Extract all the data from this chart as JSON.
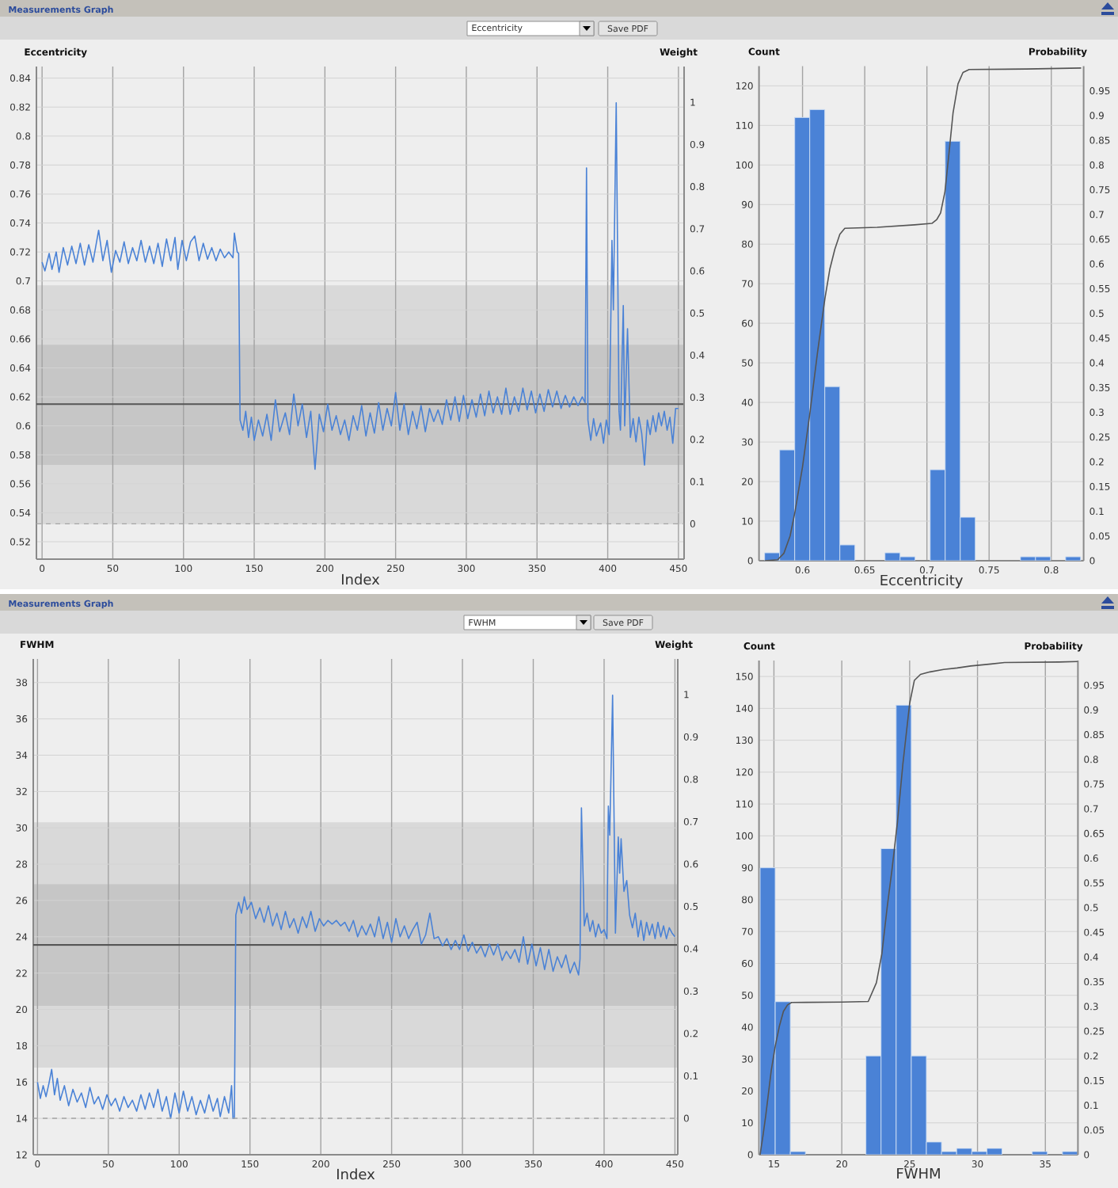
{
  "chart_data": [
    {
      "type": "line",
      "title": "Measurements Graph",
      "annotations": [
        "Eccentricity",
        "Save PDF"
      ],
      "xlabel": "Index",
      "ylabel": "Eccentricity",
      "y2label": "Weight",
      "x": [
        0,
        2,
        5,
        7,
        10,
        12,
        15,
        18,
        21,
        24,
        27,
        30,
        33,
        36,
        40,
        43,
        46,
        49,
        52,
        55,
        58,
        61,
        64,
        67,
        70,
        73,
        76,
        79,
        82,
        85,
        88,
        91,
        94,
        96,
        99,
        102,
        105,
        108,
        111,
        114,
        117,
        120,
        123,
        126,
        129,
        132,
        135,
        136,
        138,
        139,
        140,
        142,
        144,
        146,
        148,
        150,
        153,
        156,
        159,
        162,
        165,
        168,
        172,
        175,
        178,
        181,
        184,
        187,
        190,
        193,
        196,
        199,
        202,
        205,
        208,
        211,
        214,
        217,
        220,
        223,
        226,
        229,
        232,
        235,
        238,
        241,
        244,
        247,
        250,
        253,
        256,
        259,
        262,
        265,
        268,
        271,
        274,
        277,
        280,
        283,
        286,
        289,
        292,
        295,
        298,
        301,
        304,
        307,
        310,
        313,
        316,
        319,
        322,
        325,
        328,
        331,
        334,
        337,
        340,
        343,
        346,
        349,
        352,
        355,
        358,
        361,
        364,
        367,
        370,
        373,
        376,
        379,
        382,
        384,
        385,
        386,
        388,
        390,
        392,
        395,
        397,
        399,
        401,
        403,
        404,
        406,
        408,
        409,
        411,
        412,
        414,
        416,
        418,
        420,
        422,
        424,
        426,
        428,
        430,
        432,
        434,
        436,
        438,
        440,
        442,
        444,
        446,
        448,
        450
      ],
      "values": [
        0.713,
        0.707,
        0.719,
        0.708,
        0.72,
        0.706,
        0.723,
        0.711,
        0.724,
        0.712,
        0.726,
        0.711,
        0.725,
        0.713,
        0.735,
        0.714,
        0.728,
        0.706,
        0.721,
        0.713,
        0.727,
        0.712,
        0.723,
        0.714,
        0.728,
        0.713,
        0.724,
        0.712,
        0.726,
        0.71,
        0.729,
        0.714,
        0.73,
        0.708,
        0.728,
        0.714,
        0.727,
        0.731,
        0.714,
        0.726,
        0.715,
        0.723,
        0.714,
        0.722,
        0.716,
        0.72,
        0.716,
        0.733,
        0.72,
        0.719,
        0.604,
        0.597,
        0.61,
        0.592,
        0.606,
        0.59,
        0.604,
        0.593,
        0.608,
        0.59,
        0.618,
        0.596,
        0.609,
        0.594,
        0.622,
        0.6,
        0.615,
        0.592,
        0.61,
        0.57,
        0.608,
        0.596,
        0.615,
        0.597,
        0.607,
        0.594,
        0.604,
        0.59,
        0.607,
        0.597,
        0.614,
        0.593,
        0.609,
        0.595,
        0.616,
        0.597,
        0.612,
        0.6,
        0.623,
        0.597,
        0.615,
        0.594,
        0.61,
        0.598,
        0.614,
        0.596,
        0.612,
        0.603,
        0.611,
        0.601,
        0.618,
        0.604,
        0.62,
        0.603,
        0.621,
        0.605,
        0.618,
        0.606,
        0.622,
        0.607,
        0.624,
        0.609,
        0.62,
        0.608,
        0.626,
        0.608,
        0.62,
        0.61,
        0.626,
        0.611,
        0.624,
        0.609,
        0.622,
        0.61,
        0.625,
        0.613,
        0.624,
        0.612,
        0.621,
        0.613,
        0.62,
        0.614,
        0.62,
        0.616,
        0.778,
        0.604,
        0.59,
        0.605,
        0.593,
        0.602,
        0.588,
        0.604,
        0.594,
        0.728,
        0.68,
        0.823,
        0.61,
        0.597,
        0.683,
        0.6,
        0.667,
        0.592,
        0.605,
        0.589,
        0.606,
        0.595,
        0.573,
        0.604,
        0.594,
        0.607,
        0.596,
        0.609,
        0.6,
        0.61,
        0.597,
        0.606,
        0.588,
        0.612,
        0.612
      ],
      "color": "#4a82d6",
      "xlim": [
        -4,
        454
      ],
      "xticks": [
        0,
        50,
        100,
        150,
        200,
        250,
        300,
        350,
        400,
        450
      ],
      "ylim": [
        0.508,
        0.848
      ],
      "yticks": [
        0.52,
        0.54,
        0.56,
        0.58,
        0.6,
        0.62,
        0.64,
        0.66,
        0.68,
        0.7,
        0.72,
        0.74,
        0.76,
        0.78,
        0.8,
        0.82,
        0.84
      ],
      "y2lim": [
        -0.084,
        1.085
      ],
      "y2ticks": [
        0,
        0.1,
        0.2,
        0.3,
        0.4,
        0.5,
        0.6,
        0.7,
        0.8,
        0.9,
        1
      ],
      "grid": true,
      "bands": [
        {
          "axis": "y",
          "from": 0.532,
          "to": 0.697,
          "color": "#d9d9d9"
        },
        {
          "axis": "y",
          "from": 0.573,
          "to": 0.656,
          "color": "#c6c6c6"
        }
      ],
      "ref_lines": [
        {
          "axis": "y",
          "value": 0.615,
          "color": "#555555"
        },
        {
          "axis": "y2",
          "value": 0,
          "line_style": "dashed",
          "color": "#a6a6a6"
        }
      ]
    },
    {
      "type": "histogram",
      "xlabel": "Eccentricity",
      "ylabel": "Count",
      "y2label": "Probability",
      "series": [
        {
          "bins": [
            0.5695,
            0.5816,
            0.5937,
            0.6058,
            0.6179,
            0.63,
            0.6421,
            0.6542,
            0.6663,
            0.6784,
            0.6905,
            0.7026,
            0.7147,
            0.7268,
            0.7389,
            0.751,
            0.7631,
            0.7752,
            0.7873,
            0.7994,
            0.8115,
            0.8236
          ],
          "values": [
            2,
            28,
            112,
            114,
            44,
            4,
            0,
            0,
            2,
            1,
            0,
            23,
            106,
            11,
            0,
            0,
            0,
            1,
            1,
            0,
            1
          ],
          "color": "#4a82d6"
        },
        {
          "type": "line",
          "axis": "y2",
          "x": [
            0.5695,
            0.58,
            0.585,
            0.59,
            0.594,
            0.6,
            0.606,
            0.612,
            0.618,
            0.622,
            0.626,
            0.63,
            0.634,
            0.66,
            0.69,
            0.704,
            0.708,
            0.711,
            0.7145,
            0.718,
            0.721,
            0.725,
            0.729,
            0.734,
            0.78,
            0.824
          ],
          "values": [
            0,
            0.002,
            0.015,
            0.05,
            0.1,
            0.19,
            0.3,
            0.42,
            0.53,
            0.59,
            0.63,
            0.66,
            0.672,
            0.674,
            0.679,
            0.682,
            0.69,
            0.703,
            0.746,
            0.83,
            0.905,
            0.964,
            0.987,
            0.993,
            0.994,
            0.996
          ],
          "color": "#555555"
        }
      ],
      "xlim": [
        0.565,
        0.826
      ],
      "xticks": [
        0.6,
        0.65,
        0.7,
        0.75,
        0.8
      ],
      "ylim": [
        0,
        125
      ],
      "yticks": [
        0,
        10,
        20,
        30,
        40,
        50,
        60,
        70,
        80,
        90,
        100,
        110,
        120
      ],
      "y2lim": [
        0,
        1
      ],
      "y2ticks": [
        0,
        0.05,
        0.1,
        0.15,
        0.2,
        0.25,
        0.3,
        0.35,
        0.4,
        0.45,
        0.5,
        0.55,
        0.6,
        0.65,
        0.7,
        0.75,
        0.8,
        0.85,
        0.9,
        0.95
      ],
      "grid": true
    },
    {
      "type": "line",
      "title": "Measurements Graph",
      "annotations": [
        "FWHM",
        "Save PDF"
      ],
      "xlabel": "Index",
      "ylabel": "FWHM",
      "y2label": "Weight",
      "x": [
        0,
        2,
        4,
        6,
        8,
        10,
        12,
        14,
        16,
        19,
        22,
        25,
        28,
        31,
        34,
        37,
        40,
        43,
        46,
        49,
        52,
        55,
        58,
        61,
        64,
        67,
        70,
        73,
        76,
        79,
        82,
        85,
        88,
        91,
        94,
        97,
        100,
        103,
        106,
        109,
        112,
        115,
        118,
        121,
        124,
        127,
        129,
        132,
        135,
        137,
        138,
        139,
        140,
        142,
        144,
        146,
        148,
        151,
        154,
        157,
        160,
        163,
        166,
        169,
        172,
        175,
        178,
        181,
        184,
        187,
        190,
        193,
        196,
        199,
        202,
        205,
        208,
        211,
        214,
        217,
        220,
        223,
        226,
        229,
        232,
        235,
        238,
        241,
        244,
        247,
        250,
        253,
        256,
        259,
        262,
        265,
        268,
        271,
        274,
        277,
        280,
        283,
        286,
        289,
        292,
        295,
        298,
        301,
        304,
        307,
        310,
        313,
        316,
        319,
        322,
        325,
        328,
        331,
        334,
        337,
        340,
        343,
        346,
        349,
        352,
        355,
        358,
        361,
        364,
        367,
        370,
        373,
        376,
        379,
        382,
        383,
        384,
        386,
        388,
        390,
        392,
        394,
        396,
        398,
        400,
        402,
        403,
        404,
        406,
        408,
        410,
        411,
        412,
        414,
        416,
        418,
        420,
        422,
        424,
        426,
        428,
        430,
        432,
        434,
        436,
        438,
        440,
        442,
        444,
        446,
        448,
        450
      ],
      "values": [
        16.0,
        15.1,
        15.8,
        15.2,
        15.9,
        16.7,
        15.3,
        16.2,
        15.0,
        15.8,
        14.7,
        15.6,
        14.9,
        15.4,
        14.6,
        15.7,
        14.8,
        15.2,
        14.5,
        15.3,
        14.7,
        15.1,
        14.4,
        15.2,
        14.6,
        15.0,
        14.4,
        15.3,
        14.5,
        15.4,
        14.6,
        15.6,
        14.4,
        15.2,
        14.0,
        15.4,
        14.3,
        15.5,
        14.4,
        15.2,
        14.2,
        15.0,
        14.3,
        15.3,
        14.4,
        15.1,
        14.1,
        15.2,
        14.3,
        15.8,
        14.0,
        14.0,
        25.2,
        25.9,
        25.3,
        26.2,
        25.5,
        25.9,
        25.0,
        25.6,
        24.8,
        25.7,
        24.6,
        25.3,
        24.4,
        25.4,
        24.5,
        25.0,
        24.2,
        25.1,
        24.5,
        25.4,
        24.3,
        25.0,
        24.6,
        24.9,
        24.7,
        24.9,
        24.6,
        24.8,
        24.3,
        24.9,
        24.0,
        24.6,
        24.1,
        24.7,
        24.0,
        25.1,
        23.9,
        24.8,
        23.7,
        25.0,
        24.0,
        24.6,
        23.9,
        24.4,
        24.8,
        23.6,
        24.1,
        25.3,
        23.9,
        24.0,
        23.5,
        23.9,
        23.3,
        23.8,
        23.3,
        24.1,
        23.2,
        23.7,
        23.1,
        23.5,
        22.9,
        23.6,
        23.0,
        23.6,
        22.7,
        23.2,
        22.8,
        23.3,
        22.6,
        24.0,
        22.5,
        23.6,
        22.4,
        23.4,
        22.2,
        23.3,
        22.1,
        22.9,
        22.3,
        23.0,
        22.0,
        22.6,
        21.9,
        22.8,
        31.1,
        24.6,
        25.3,
        24.3,
        24.9,
        24.0,
        24.7,
        24.2,
        24.4,
        23.9,
        31.2,
        29.6,
        37.3,
        24.2,
        29.5,
        27.5,
        29.4,
        26.5,
        27.1,
        25.2,
        24.5,
        25.3,
        24.0,
        24.9,
        23.8,
        24.8,
        24.1,
        24.7,
        23.9,
        24.8,
        24.0,
        24.6,
        23.9,
        24.5,
        24.2,
        24.0
      ],
      "color": "#4a82d6",
      "xlim": [
        -3,
        452
      ],
      "xticks": [
        0,
        50,
        100,
        150,
        200,
        250,
        300,
        350,
        400,
        450
      ],
      "ylim": [
        12,
        39.3
      ],
      "yticks": [
        12,
        14,
        16,
        18,
        20,
        22,
        24,
        26,
        28,
        30,
        32,
        34,
        36,
        38
      ],
      "y2lim": [
        -0.086,
        1.084
      ],
      "y2ticks": [
        0,
        0.1,
        0.2,
        0.3,
        0.4,
        0.5,
        0.6,
        0.7,
        0.8,
        0.9,
        1
      ],
      "grid": true,
      "bands": [
        {
          "axis": "y",
          "from": 16.8,
          "to": 30.3,
          "color": "#d9d9d9"
        },
        {
          "axis": "y",
          "from": 20.2,
          "to": 26.9,
          "color": "#c6c6c6"
        }
      ],
      "ref_lines": [
        {
          "axis": "y",
          "value": 23.55,
          "color": "#555555"
        },
        {
          "axis": "y2",
          "value": 0,
          "line_style": "dashed",
          "color": "#a6a6a6"
        }
      ]
    },
    {
      "type": "histogram",
      "xlabel": "FWHM",
      "ylabel": "Count",
      "y2label": "Probability",
      "series": [
        {
          "bins": [
            13.98,
            15.094,
            16.208,
            17.322,
            18.436,
            19.55,
            20.664,
            21.778,
            22.892,
            24.006,
            25.12,
            26.234,
            27.348,
            28.462,
            29.576,
            30.69,
            31.804,
            32.918,
            34.032,
            35.146,
            36.26,
            37.374
          ],
          "values": [
            90,
            48,
            1,
            0,
            0,
            0,
            0,
            31,
            96,
            141,
            31,
            4,
            1,
            2,
            1,
            2,
            0,
            0,
            1,
            0,
            1
          ],
          "color": "#4a82d6"
        },
        {
          "type": "line",
          "axis": "y2",
          "x": [
            13.98,
            14.2,
            14.4,
            14.8,
            15.1,
            15.4,
            15.7,
            16.0,
            16.3,
            20,
            21.95,
            22.55,
            22.95,
            23.35,
            23.7,
            24.1,
            24.5,
            25.0,
            25.35,
            25.8,
            26.5,
            27.5,
            28.5,
            29.5,
            31,
            32,
            36,
            37.37
          ],
          "values": [
            0,
            0.04,
            0.08,
            0.17,
            0.22,
            0.26,
            0.29,
            0.303,
            0.308,
            0.309,
            0.31,
            0.348,
            0.406,
            0.502,
            0.577,
            0.673,
            0.79,
            0.913,
            0.96,
            0.972,
            0.977,
            0.982,
            0.985,
            0.989,
            0.993,
            0.996,
            0.997,
            0.998
          ],
          "color": "#555555"
        }
      ],
      "xlim": [
        13.9,
        37.4
      ],
      "xticks": [
        15,
        20,
        25,
        30,
        35
      ],
      "ylim": [
        0,
        155
      ],
      "yticks": [
        0,
        10,
        20,
        30,
        40,
        50,
        60,
        70,
        80,
        90,
        100,
        110,
        120,
        130,
        140,
        150
      ],
      "y2lim": [
        0,
        1
      ],
      "y2ticks": [
        0,
        0.05,
        0.1,
        0.15,
        0.2,
        0.25,
        0.3,
        0.35,
        0.4,
        0.45,
        0.5,
        0.55,
        0.6,
        0.65,
        0.7,
        0.75,
        0.8,
        0.85,
        0.9,
        0.95
      ],
      "grid": true
    }
  ]
}
